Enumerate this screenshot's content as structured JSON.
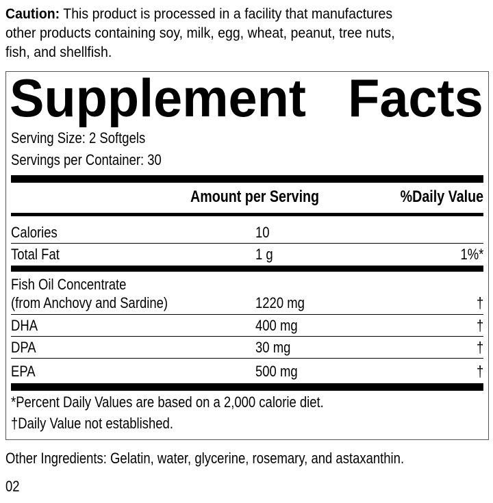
{
  "caution": {
    "label": "Caution:",
    "lines": [
      " This product is processed in a facility that manufactures",
      "other products containing soy, milk, egg, wheat, peanut, tree nuts,",
      "fish, and shellfish."
    ]
  },
  "panel": {
    "title_left": "Supplement",
    "title_right": "Facts",
    "serving_size": "Serving Size: 2 Softgels",
    "servings_per_container": "Servings per Container: 30",
    "header_amount": "Amount per Serving",
    "header_dv": "%Daily Value",
    "rows": [
      {
        "name": "Calories",
        "amount": "10",
        "dv": ""
      },
      {
        "name": "Total Fat",
        "amount": "1 g",
        "dv": "1%*"
      },
      {
        "name": "Fish Oil Concentrate",
        "name2": "(from Anchovy and Sardine)",
        "amount": "1220 mg",
        "dv": "†"
      },
      {
        "name": "DHA",
        "amount": "400 mg",
        "dv": "†"
      },
      {
        "name": "DPA",
        "amount": "30 mg",
        "dv": "†"
      },
      {
        "name": "EPA",
        "amount": "500 mg",
        "dv": "†"
      }
    ],
    "footnote1": "*Percent Daily Values are based on a 2,000 calorie diet.",
    "footnote2": "†Daily Value not established."
  },
  "other_ingredients": "Other Ingredients: Gelatin, water, glycerine, rosemary, and astaxanthin.",
  "code": "02"
}
